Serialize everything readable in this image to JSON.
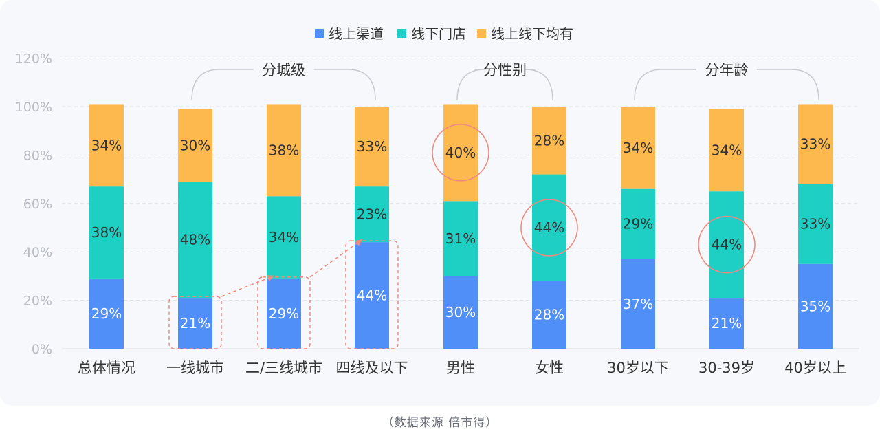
{
  "chart_data": {
    "type": "bar",
    "stacked": true,
    "categories": [
      "总体情况",
      "一线城市",
      "二/三线城市",
      "四线及以下",
      "男性",
      "女性",
      "30岁以下",
      "30-39岁",
      "40岁以上"
    ],
    "series": [
      {
        "name": "线上渠道",
        "color": "#4f8ff7",
        "values": [
          29,
          21,
          29,
          44,
          30,
          28,
          37,
          21,
          35
        ]
      },
      {
        "name": "线下门店",
        "color": "#1ecfc3",
        "values": [
          38,
          48,
          34,
          23,
          31,
          44,
          29,
          44,
          33
        ]
      },
      {
        "name": "线上线下均有",
        "color": "#fdb94e",
        "values": [
          34,
          30,
          38,
          33,
          40,
          28,
          34,
          34,
          33
        ]
      }
    ],
    "y_ticks": [
      "0%",
      "20%",
      "40%",
      "60%",
      "80%",
      "100%",
      "120%"
    ],
    "ylim": [
      0,
      120
    ],
    "grid": true,
    "legend_position": "top-center",
    "groups": [
      {
        "label": "分城级",
        "from": 1,
        "to": 3
      },
      {
        "label": "分性别",
        "from": 4,
        "to": 5
      },
      {
        "label": "分年龄",
        "from": 6,
        "to": 8
      }
    ],
    "highlight_circles": [
      {
        "category": 4,
        "series": 2
      },
      {
        "category": 5,
        "series": 1
      },
      {
        "category": 7,
        "series": 1
      }
    ],
    "highlight_boxes": [
      1,
      2,
      3
    ],
    "highlight_color": "#f08a7e"
  },
  "footer": {
    "source": "（数据来源  倍市得）"
  }
}
